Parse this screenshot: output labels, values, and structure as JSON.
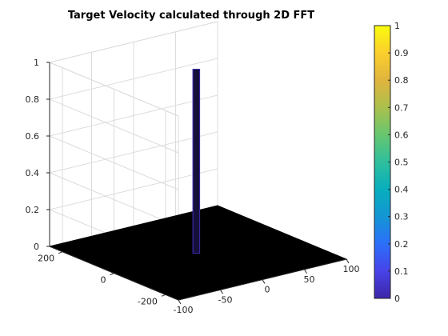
{
  "chart_data": {
    "type": "surface",
    "title": "Target Velocity calculated through 2D FFT",
    "xlabel": "",
    "ylabel": "",
    "zlabel": "",
    "x_range": [
      -100,
      100
    ],
    "y_range": [
      -250,
      250
    ],
    "z_range": [
      0,
      1
    ],
    "x_ticks": [
      "-100",
      "-50",
      "0",
      "50",
      "100"
    ],
    "y_ticks": [
      "200",
      "0",
      "-200"
    ],
    "z_ticks": [
      "0",
      "0.2",
      "0.4",
      "0.6",
      "0.8",
      "1"
    ],
    "grid": true,
    "surface_base_value": 0,
    "peak": {
      "x": -2,
      "y": 0,
      "z": 1
    },
    "surface_color": "#000000",
    "peak_edge_color": "#3a2aa8",
    "colorbar": {
      "colormap": "parula",
      "limits": [
        0,
        1
      ],
      "ticks": [
        "0",
        "0.1",
        "0.2",
        "0.3",
        "0.4",
        "0.5",
        "0.6",
        "0.7",
        "0.8",
        "0.9",
        "1"
      ],
      "stops": [
        "#3e26a8",
        "#4743e8",
        "#2c6ffb",
        "#1496d4",
        "#07aebd",
        "#2fbf9d",
        "#67c66f",
        "#abc04c",
        "#e0b43d",
        "#fbcf2d",
        "#f9fb0e"
      ]
    }
  }
}
